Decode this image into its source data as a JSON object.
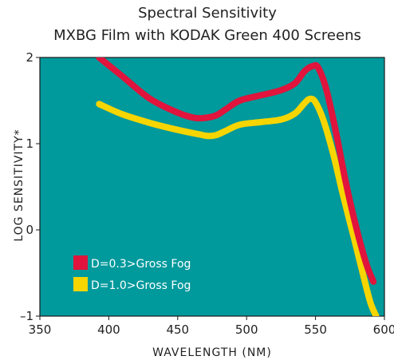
{
  "chart_data": {
    "type": "line",
    "title": "Spectral Sensitivity",
    "subtitle": "MXBG Film with KODAK Green 400 Screens",
    "xlabel": "WAVELENGTH (NM)",
    "ylabel": "LOG SENSITIVITY*",
    "xlim": [
      350,
      600
    ],
    "ylim": [
      -1,
      2
    ],
    "xticks": [
      350,
      400,
      450,
      500,
      550,
      600
    ],
    "yticks": [
      -1,
      0,
      1,
      2
    ],
    "xtick_labels": [
      "350",
      "400",
      "450",
      "500",
      "550",
      "600"
    ],
    "ytick_labels": [
      "–1",
      "0",
      "1",
      "2"
    ],
    "plot_background": "#00999c",
    "grid": false,
    "legend_position": "lower-left",
    "series": [
      {
        "name": "D=0.3>Gross Fog",
        "color": "#e0143c",
        "x": [
          393,
          410,
          430,
          450,
          462,
          470,
          478,
          485,
          495,
          510,
          525,
          535,
          542,
          548,
          552,
          558,
          565,
          572,
          580,
          587,
          592
        ],
        "y": [
          2.0,
          1.78,
          1.52,
          1.36,
          1.3,
          1.3,
          1.33,
          1.4,
          1.5,
          1.56,
          1.62,
          1.7,
          1.84,
          1.9,
          1.88,
          1.62,
          1.12,
          0.55,
          0.0,
          -0.4,
          -0.6
        ]
      },
      {
        "name": "D=1.0>Gross Fog",
        "color": "#f6d500",
        "x": [
          393,
          410,
          430,
          450,
          465,
          472,
          478,
          485,
          495,
          510,
          525,
          535,
          542,
          546,
          550,
          556,
          563,
          570,
          578,
          585,
          590,
          594
        ],
        "y": [
          1.46,
          1.34,
          1.24,
          1.16,
          1.11,
          1.09,
          1.1,
          1.15,
          1.22,
          1.25,
          1.28,
          1.35,
          1.47,
          1.52,
          1.48,
          1.26,
          0.87,
          0.4,
          -0.1,
          -0.55,
          -0.85,
          -1.0
        ]
      }
    ]
  }
}
